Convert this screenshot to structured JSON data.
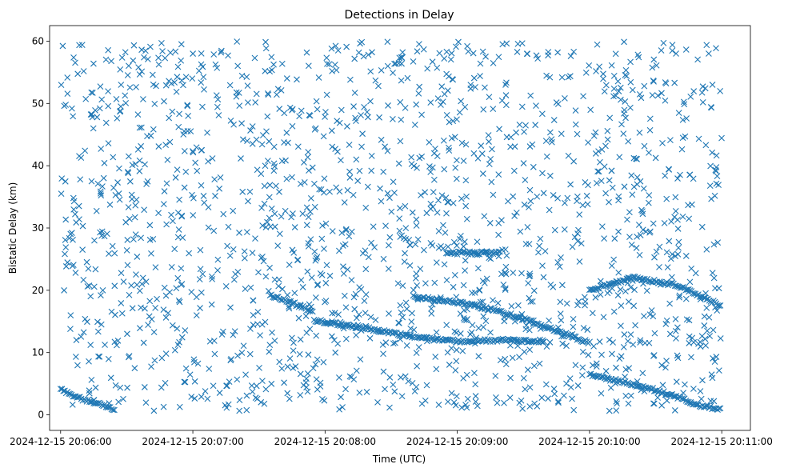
{
  "chart_data": {
    "type": "scatter",
    "title": "Detections in Delay",
    "xlabel": "Time (UTC)",
    "ylabel": "Bistatic Delay (km)",
    "x_ticks": [
      "2024-12-15 20:06:00",
      "2024-12-15 20:07:00",
      "2024-12-15 20:08:00",
      "2024-12-15 20:09:00",
      "2024-12-15 20:10:00",
      "2024-12-15 20:11:00"
    ],
    "y_ticks": [
      0,
      10,
      20,
      30,
      40,
      50,
      60
    ],
    "xlim": [
      "2024-12-15 20:05:55",
      "2024-12-15 20:11:13"
    ],
    "ylim": [
      -2.5,
      62.5
    ],
    "marker": "x",
    "color": "#1f77b4",
    "grid": false,
    "series": [
      {
        "name": "",
        "tracks": [
          {
            "points": [
              [
                "2024-12-15 20:06:00",
                4.0
              ],
              [
                "2024-12-15 20:06:10",
                2.5
              ],
              [
                "2024-12-15 20:06:20",
                1.5
              ],
              [
                "2024-12-15 20:06:25",
                0.8
              ]
            ]
          },
          {
            "points": [
              [
                "2024-12-15 20:07:35",
                19.2
              ],
              [
                "2024-12-15 20:07:45",
                18.0
              ],
              [
                "2024-12-15 20:07:55",
                16.5
              ]
            ]
          },
          {
            "points": [
              [
                "2024-12-15 20:07:55",
                15.2
              ],
              [
                "2024-12-15 20:08:20",
                13.8
              ],
              [
                "2024-12-15 20:08:40",
                12.5
              ],
              [
                "2024-12-15 20:09:00",
                11.8
              ],
              [
                "2024-12-15 20:09:20",
                12.0
              ],
              [
                "2024-12-15 20:09:40",
                11.8
              ]
            ]
          },
          {
            "points": [
              [
                "2024-12-15 20:08:40",
                19.0
              ],
              [
                "2024-12-15 20:09:05",
                17.8
              ],
              [
                "2024-12-15 20:09:25",
                16.0
              ],
              [
                "2024-12-15 20:09:45",
                13.5
              ],
              [
                "2024-12-15 20:10:00",
                11.5
              ]
            ]
          },
          {
            "points": [
              [
                "2024-12-15 20:10:00",
                20.0
              ],
              [
                "2024-12-15 20:10:20",
                22.0
              ],
              [
                "2024-12-15 20:10:40",
                20.8
              ],
              [
                "2024-12-15 20:11:00",
                17.5
              ]
            ]
          },
          {
            "points": [
              [
                "2024-12-15 20:10:00",
                6.5
              ],
              [
                "2024-12-15 20:10:30",
                4.0
              ],
              [
                "2024-12-15 20:10:50",
                1.5
              ],
              [
                "2024-12-15 20:11:00",
                0.8
              ]
            ]
          },
          {
            "points": [
              [
                "2024-12-15 20:08:55",
                26.0
              ],
              [
                "2024-12-15 20:09:20",
                26.0
              ]
            ]
          }
        ]
      }
    ]
  }
}
